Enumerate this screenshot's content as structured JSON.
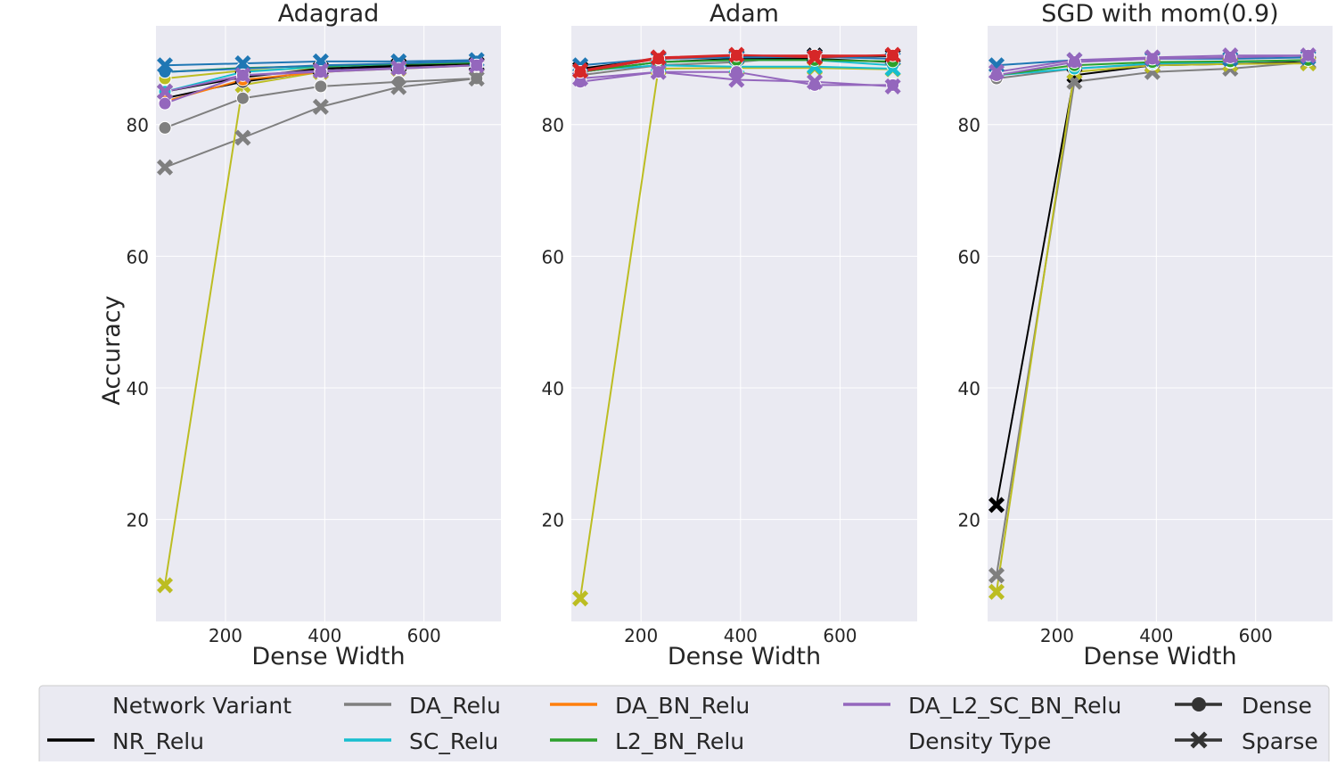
{
  "colors": {
    "NR_Relu": "#000000",
    "DA_Relu": "#7f7f7f",
    "SC_Relu": "#17becf",
    "DA_BN_Relu": "#ff7f0e",
    "L2_BN_Relu": "#2ca02c",
    "DA_L2_SC_BN_Relu": "#9467bd",
    "extra_olive": "#bcbd22",
    "extra_blue": "#1f77b4",
    "extra_red": "#d62728",
    "panel_bg": "#eaeaf2",
    "grid": "#ffffff"
  },
  "legend": {
    "items": [
      {
        "label": "Network Variant",
        "kind": "header"
      },
      {
        "label": "NR_Relu",
        "kind": "line",
        "color": "#000000"
      },
      {
        "label": "DA_Relu",
        "kind": "line",
        "color": "#7f7f7f"
      },
      {
        "label": "SC_Relu",
        "kind": "line",
        "color": "#17becf"
      },
      {
        "label": "DA_BN_Relu",
        "kind": "line",
        "color": "#ff7f0e"
      },
      {
        "label": "L2_BN_Relu",
        "kind": "line",
        "color": "#2ca02c"
      },
      {
        "label": "DA_L2_SC_BN_Relu",
        "kind": "line",
        "color": "#9467bd"
      },
      {
        "label": "Density Type",
        "kind": "header"
      },
      {
        "label": "Dense",
        "kind": "marker",
        "marker": "circle"
      },
      {
        "label": "Sparse",
        "kind": "marker",
        "marker": "x"
      }
    ]
  },
  "chart_data": [
    {
      "type": "line",
      "title": "Adagrad",
      "xlabel": "Dense Width",
      "ylabel": "Accuracy",
      "xlim": [
        60,
        755
      ],
      "ylim": [
        4.5,
        95
      ],
      "xticks": [
        200,
        400,
        600
      ],
      "yticks": [
        20,
        40,
        60,
        80
      ],
      "x": [
        78,
        235,
        392,
        549,
        706
      ],
      "series": [
        {
          "color": "#7f7f7f",
          "marker": "circle",
          "values": [
            79.5,
            84,
            85.8,
            86.5,
            87
          ]
        },
        {
          "color": "#7f7f7f",
          "marker": "x",
          "values": [
            73.5,
            78,
            82.7,
            85.7,
            87
          ]
        },
        {
          "color": "#bcbd22",
          "marker": "x",
          "values": [
            10,
            86,
            88,
            88.5,
            89
          ]
        },
        {
          "color": "#bcbd22",
          "marker": "circle",
          "values": [
            87,
            88.2,
            88.6,
            88.8,
            89
          ]
        },
        {
          "color": "#000000",
          "marker": "circle",
          "values": [
            84,
            86.5,
            88.2,
            88.8,
            89
          ]
        },
        {
          "color": "#000000",
          "marker": "x",
          "values": [
            85,
            87.2,
            88.5,
            89,
            89.2
          ]
        },
        {
          "color": "#17becf",
          "marker": "circle",
          "values": [
            85,
            88,
            88.8,
            89.2,
            89.5
          ]
        },
        {
          "color": "#ff7f0e",
          "marker": "circle",
          "values": [
            83.5,
            86.8,
            88,
            88.6,
            89
          ]
        },
        {
          "color": "#2ca02c",
          "marker": "circle",
          "values": [
            88,
            88.6,
            88.9,
            89.2,
            89.4
          ]
        },
        {
          "color": "#1f77b4",
          "marker": "circle",
          "values": [
            88,
            88.5,
            89,
            89.3,
            89.6
          ]
        },
        {
          "color": "#1f77b4",
          "marker": "x",
          "values": [
            89,
            89.3,
            89.6,
            89.6,
            89.8
          ]
        },
        {
          "color": "#9467bd",
          "marker": "circle",
          "values": [
            83.2,
            87.5,
            88,
            88.5,
            89
          ]
        },
        {
          "color": "#9467bd",
          "marker": "x",
          "values": [
            85,
            87.5,
            88.2,
            88.6,
            89
          ]
        }
      ]
    },
    {
      "type": "line",
      "title": "Adam",
      "xlabel": "Dense Width",
      "ylabel": "",
      "xlim": [
        60,
        755
      ],
      "ylim": [
        4.5,
        95
      ],
      "xticks": [
        200,
        400,
        600
      ],
      "yticks": [
        20,
        40,
        60,
        80
      ],
      "x": [
        78,
        235,
        392,
        549,
        706
      ],
      "series": [
        {
          "color": "#bcbd22",
          "marker": "x",
          "values": [
            8,
            88.5,
            88.6,
            88.6,
            88.4
          ]
        },
        {
          "color": "#7f7f7f",
          "marker": "circle",
          "values": [
            87.5,
            89,
            89.5,
            90.5,
            90
          ]
        },
        {
          "color": "#000000",
          "marker": "circle",
          "values": [
            88,
            89.5,
            90,
            90,
            89.5
          ]
        },
        {
          "color": "#000000",
          "marker": "x",
          "values": [
            88.5,
            90,
            90.3,
            90.5,
            90.4
          ]
        },
        {
          "color": "#17becf",
          "marker": "circle",
          "values": [
            88,
            89.5,
            89.8,
            89.8,
            89
          ]
        },
        {
          "color": "#17becf",
          "marker": "x",
          "values": [
            88.2,
            89,
            88.8,
            88.8,
            88.5
          ]
        },
        {
          "color": "#1f77b4",
          "marker": "x",
          "values": [
            89,
            90,
            90.2,
            90.3,
            90
          ]
        },
        {
          "color": "#2ca02c",
          "marker": "circle",
          "values": [
            88,
            89.5,
            89.8,
            89.8,
            89.6
          ]
        },
        {
          "color": "#9467bd",
          "marker": "circle",
          "values": [
            86.5,
            88,
            88,
            86,
            86
          ]
        },
        {
          "color": "#9467bd",
          "marker": "x",
          "values": [
            87,
            88,
            86.8,
            86.5,
            85.8
          ]
        },
        {
          "color": "#d62728",
          "marker": "circle",
          "values": [
            88,
            90,
            90.5,
            90.5,
            90.5
          ]
        },
        {
          "color": "#d62728",
          "marker": "x",
          "values": [
            88.2,
            90.2,
            90.6,
            90.2,
            90.6
          ]
        }
      ]
    },
    {
      "type": "line",
      "title": "SGD with mom(0.9)",
      "xlabel": "Dense Width",
      "ylabel": "",
      "xlim": [
        60,
        755
      ],
      "ylim": [
        4.5,
        95
      ],
      "xticks": [
        200,
        400,
        600
      ],
      "yticks": [
        20,
        40,
        60,
        80
      ],
      "x": [
        78,
        235,
        392,
        549,
        706
      ],
      "series": [
        {
          "color": "#000000",
          "marker": "x",
          "values": [
            22.2,
            87.5,
            89,
            89.2,
            89.5
          ]
        },
        {
          "color": "#7f7f7f",
          "marker": "x",
          "values": [
            11.5,
            86.5,
            88,
            88.5,
            89.5
          ]
        },
        {
          "color": "#bcbd22",
          "marker": "x",
          "values": [
            9,
            88,
            89,
            89.2,
            89.3
          ]
        },
        {
          "color": "#7f7f7f",
          "marker": "circle",
          "values": [
            87,
            88.5,
            89.2,
            89.5,
            89.8
          ]
        },
        {
          "color": "#17becf",
          "marker": "circle",
          "values": [
            87.5,
            88.5,
            89.3,
            89.5,
            89.8
          ]
        },
        {
          "color": "#2ca02c",
          "marker": "circle",
          "values": [
            87.5,
            89,
            89.5,
            89.6,
            89.8
          ]
        },
        {
          "color": "#1f77b4",
          "marker": "x",
          "values": [
            89,
            89.8,
            90,
            90,
            90.2
          ]
        },
        {
          "color": "#9467bd",
          "marker": "circle",
          "values": [
            87.5,
            89.5,
            90,
            90.2,
            90.5
          ]
        },
        {
          "color": "#9467bd",
          "marker": "x",
          "values": [
            88,
            89.8,
            90.2,
            90.5,
            90.5
          ]
        }
      ]
    }
  ]
}
